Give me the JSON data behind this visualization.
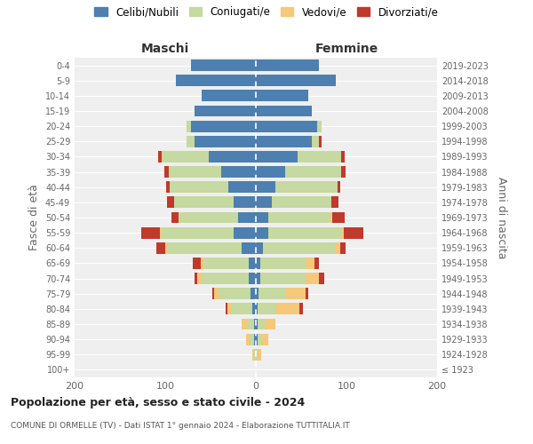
{
  "age_groups": [
    "100+",
    "95-99",
    "90-94",
    "85-89",
    "80-84",
    "75-79",
    "70-74",
    "65-69",
    "60-64",
    "55-59",
    "50-54",
    "45-49",
    "40-44",
    "35-39",
    "30-34",
    "25-29",
    "20-24",
    "15-19",
    "10-14",
    "5-9",
    "0-4"
  ],
  "birth_years": [
    "≤ 1923",
    "1924-1928",
    "1929-1933",
    "1934-1938",
    "1939-1943",
    "1944-1948",
    "1949-1953",
    "1954-1958",
    "1959-1963",
    "1964-1968",
    "1969-1973",
    "1974-1978",
    "1979-1983",
    "1984-1988",
    "1989-1993",
    "1994-1998",
    "1999-2003",
    "2004-2008",
    "2009-2013",
    "2014-2018",
    "2019-2023"
  ],
  "colors": {
    "celibe": "#4d7fb0",
    "coniugato": "#c5d9a0",
    "vedovo": "#f5c87a",
    "divorziato": "#c0392b"
  },
  "maschi": {
    "celibe": [
      0,
      0,
      2,
      2,
      4,
      6,
      8,
      8,
      16,
      25,
      20,
      25,
      30,
      38,
      52,
      68,
      72,
      68,
      60,
      88,
      72
    ],
    "coniugato": [
      0,
      2,
      5,
      8,
      22,
      35,
      52,
      50,
      82,
      80,
      65,
      65,
      65,
      58,
      52,
      8,
      4,
      0,
      0,
      0,
      0
    ],
    "vedovo": [
      0,
      2,
      4,
      6,
      5,
      5,
      5,
      3,
      2,
      1,
      0,
      0,
      0,
      0,
      0,
      0,
      0,
      0,
      0,
      0,
      0
    ],
    "divorziato": [
      0,
      0,
      0,
      0,
      2,
      2,
      3,
      9,
      10,
      20,
      8,
      8,
      4,
      5,
      4,
      0,
      0,
      0,
      0,
      0,
      0
    ]
  },
  "femmine": {
    "celibe": [
      0,
      0,
      2,
      2,
      2,
      3,
      5,
      5,
      8,
      14,
      14,
      18,
      22,
      32,
      46,
      62,
      68,
      62,
      58,
      88,
      70
    ],
    "coniugato": [
      0,
      2,
      4,
      8,
      20,
      30,
      50,
      50,
      80,
      80,
      68,
      65,
      68,
      62,
      48,
      8,
      5,
      0,
      0,
      0,
      0
    ],
    "vedovo": [
      0,
      4,
      8,
      12,
      26,
      22,
      15,
      10,
      5,
      3,
      2,
      0,
      0,
      0,
      0,
      0,
      0,
      0,
      0,
      0,
      0
    ],
    "divorziato": [
      0,
      0,
      0,
      0,
      4,
      3,
      5,
      5,
      6,
      22,
      14,
      8,
      3,
      5,
      4,
      3,
      0,
      0,
      0,
      0,
      0
    ]
  },
  "title1": "Popolazione per età, sesso e stato civile - 2024",
  "title2": "COMUNE DI ORMELLE (TV) - Dati ISTAT 1° gennaio 2024 - Elaborazione TUTTITALIA.IT",
  "xlabel_maschi": "Maschi",
  "xlabel_femmine": "Femmine",
  "ylabel_left": "Fasce di età",
  "ylabel_right": "Anni di nascita",
  "xlim": 200,
  "legend_labels": [
    "Celibi/Nubili",
    "Coniugati/e",
    "Vedovi/e",
    "Divorziati/e"
  ],
  "background_color": "#efefef"
}
